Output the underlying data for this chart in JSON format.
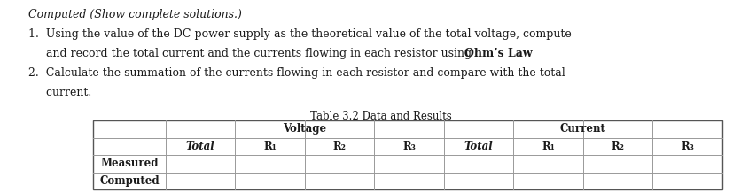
{
  "title": "Table 3.2 Data and Results",
  "line0": "Computed (Show complete solutions.)",
  "line1a": "1.  Using the value of the DC power supply as the theoretical value of the total voltage, compute",
  "line1b_normal": "     and record the total current and the currents flowing in each resistor using ",
  "line1b_bold": "Ohm’s Law",
  "line1b_end": ".",
  "line2a": "2.  Calculate the summation of the currents flowing in each resistor and compare with the total",
  "line2b": "     current.",
  "row_labels": [
    "Measured",
    "Computed"
  ],
  "voltage_header": "Voltage",
  "current_header": "Current",
  "col2_headers": [
    "Total",
    "R₁",
    "R₂",
    "R₃",
    "Total",
    "R₁",
    "R₂",
    "R₃"
  ],
  "bg_color": "#ffffff",
  "text_color": "#1a1a1a",
  "border_color": "#555555",
  "line_color": "#999999",
  "fs_text": 9.0,
  "fs_table": 8.5
}
